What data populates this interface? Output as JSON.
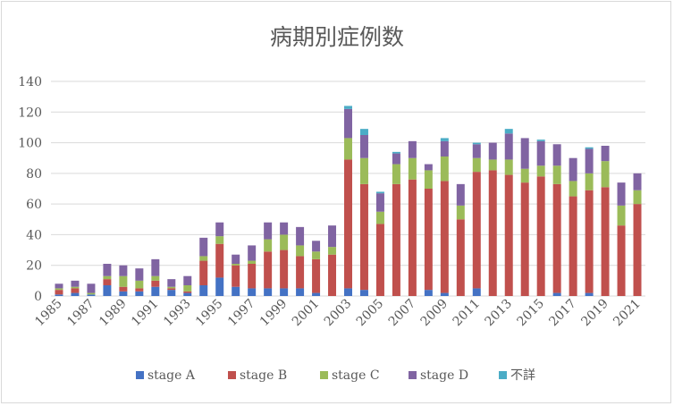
{
  "chart_data": {
    "type": "bar",
    "stacked": true,
    "title": "病期別症例数",
    "ylim": [
      0,
      140
    ],
    "yticks": [
      0,
      20,
      40,
      60,
      80,
      100,
      120,
      140
    ],
    "grid": true,
    "legend_position": "bottom",
    "years": [
      1985,
      1986,
      1987,
      1988,
      1989,
      1990,
      1991,
      1992,
      1993,
      1994,
      1995,
      1996,
      1997,
      1998,
      1999,
      2000,
      2001,
      2002,
      2003,
      2004,
      2005,
      2006,
      2007,
      2008,
      2009,
      2010,
      2011,
      2012,
      2013,
      2014,
      2015,
      2016,
      2017,
      2018,
      2019,
      2020,
      2021
    ],
    "xtick_labels": [
      "1985",
      "1987",
      "1989",
      "1991",
      "1993",
      "1995",
      "1997",
      "1999",
      "2001",
      "2003",
      "2005",
      "2007",
      "2009",
      "2011",
      "2013",
      "2015",
      "2017",
      "2019",
      "2021"
    ],
    "series": [
      {
        "name": "stage A",
        "color": "#4472c4",
        "values": [
          1,
          2,
          1,
          7,
          3,
          3,
          6,
          4,
          2,
          7,
          12,
          6,
          5,
          5,
          5,
          5,
          2,
          0,
          5,
          4,
          0,
          0,
          0,
          4,
          2,
          0,
          5,
          0,
          0,
          0,
          0,
          2,
          0,
          2,
          0,
          0,
          0
        ]
      },
      {
        "name": "stage B",
        "color": "#c0504d",
        "values": [
          3,
          3,
          0,
          4,
          3,
          2,
          4,
          1,
          1,
          16,
          22,
          14,
          16,
          24,
          25,
          21,
          22,
          27,
          84,
          69,
          47,
          73,
          76,
          66,
          73,
          50,
          76,
          82,
          79,
          74,
          78,
          71,
          65,
          67,
          71,
          46,
          60
        ]
      },
      {
        "name": "stage C",
        "color": "#9bbb59",
        "values": [
          1,
          1,
          1,
          2,
          7,
          5,
          3,
          1,
          4,
          3,
          5,
          1,
          2,
          8,
          10,
          7,
          5,
          5,
          14,
          17,
          8,
          13,
          14,
          12,
          16,
          9,
          9,
          7,
          10,
          9,
          7,
          12,
          10,
          11,
          17,
          13,
          9
        ]
      },
      {
        "name": "stage D",
        "color": "#8064a2",
        "values": [
          3,
          4,
          6,
          8,
          7,
          8,
          11,
          5,
          6,
          12,
          9,
          6,
          10,
          11,
          8,
          12,
          7,
          14,
          19,
          15,
          12,
          7,
          11,
          4,
          10,
          14,
          9,
          11,
          17,
          20,
          16,
          14,
          15,
          16,
          10,
          15,
          11
        ]
      },
      {
        "name": "不詳",
        "color": "#4bacc6",
        "values": [
          0,
          0,
          0,
          0,
          0,
          0,
          0,
          0,
          0,
          0,
          0,
          0,
          0,
          0,
          0,
          0,
          0,
          0,
          2,
          4,
          1,
          1,
          0,
          0,
          2,
          0,
          1,
          0,
          3,
          0,
          1,
          0,
          0,
          1,
          0,
          0,
          0
        ]
      }
    ]
  }
}
